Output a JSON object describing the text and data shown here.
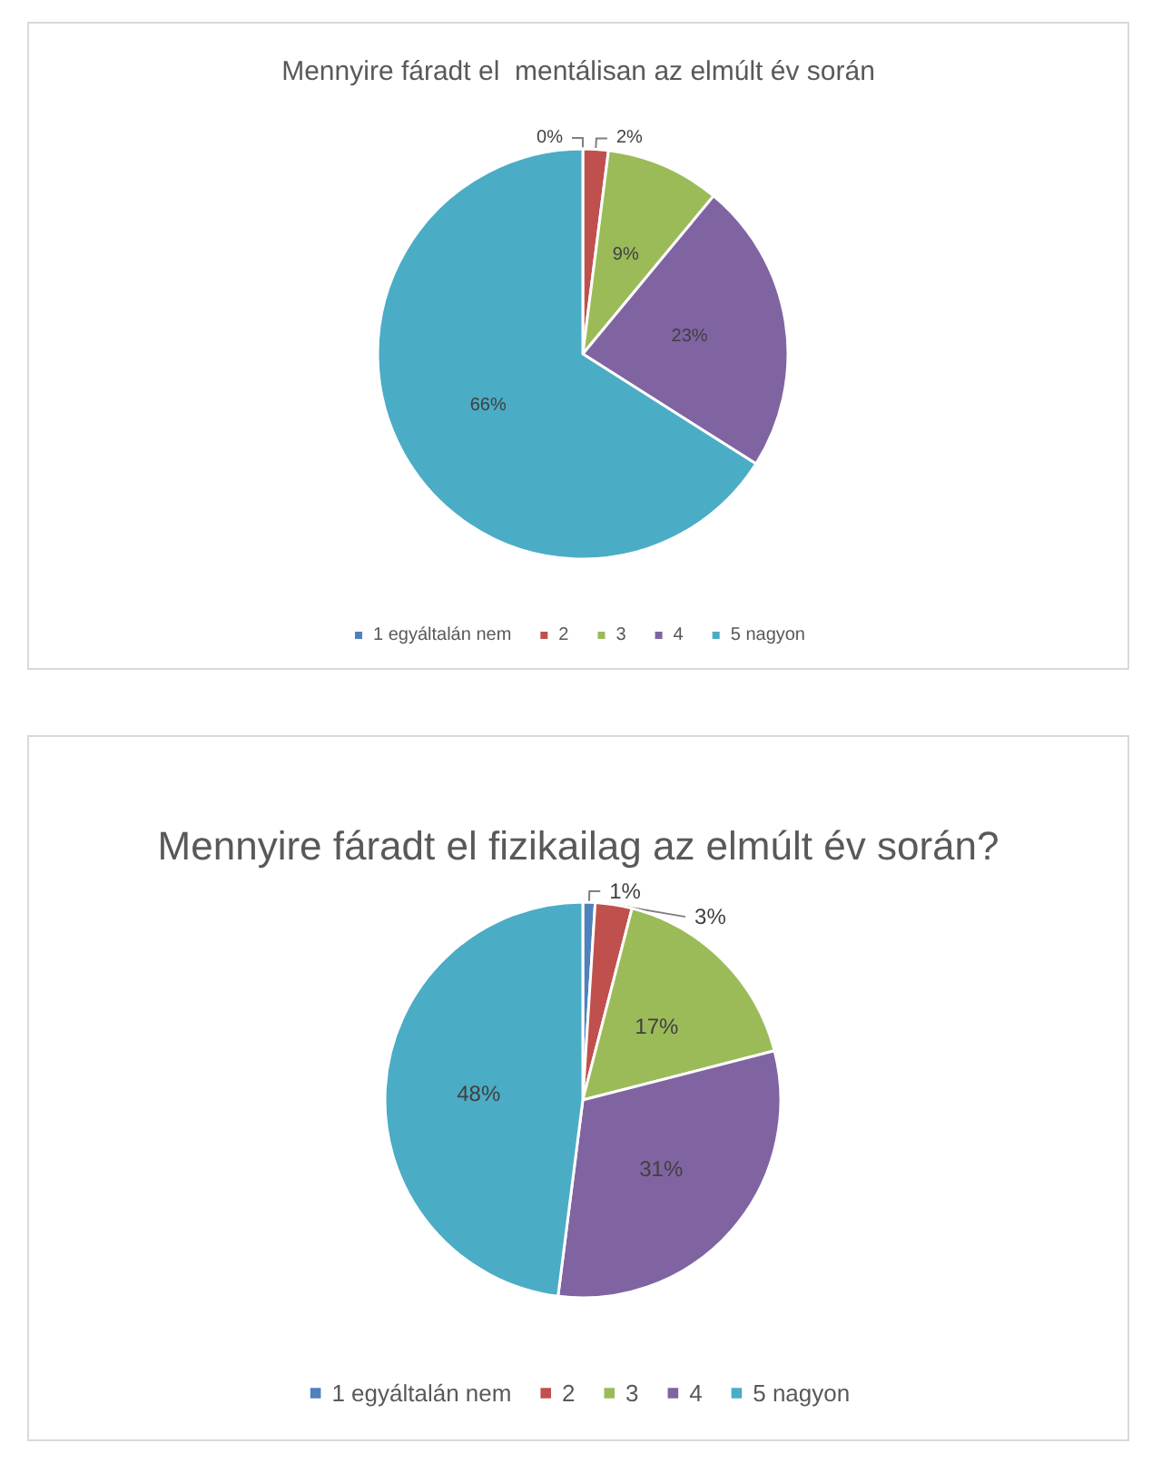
{
  "chart_data": [
    {
      "type": "pie",
      "title": "Mennyire fáradt el  mentálisan az elmúlt év során",
      "categories": [
        "1 egyáltalán nem",
        "2",
        "3",
        "4",
        "5 nagyon"
      ],
      "values": [
        0,
        2,
        9,
        23,
        66
      ],
      "value_labels": [
        "0%",
        "2%",
        "9%",
        "23%",
        "66%"
      ],
      "colors": [
        "#4f81bd",
        "#c0504d",
        "#9bbb59",
        "#8064a2",
        "#4bacc6"
      ],
      "legend": "bottom"
    },
    {
      "type": "pie",
      "title": "Mennyire fáradt el fizikailag az elmúlt év során?",
      "categories": [
        "1 egyáltalán nem",
        "2",
        "3",
        "4",
        "5 nagyon"
      ],
      "values": [
        1,
        3,
        17,
        31,
        48
      ],
      "value_labels": [
        "1%",
        "3%",
        "17%",
        "31%",
        "48%"
      ],
      "colors": [
        "#4f81bd",
        "#c0504d",
        "#9bbb59",
        "#8064a2",
        "#4bacc6"
      ],
      "legend": "bottom"
    }
  ]
}
